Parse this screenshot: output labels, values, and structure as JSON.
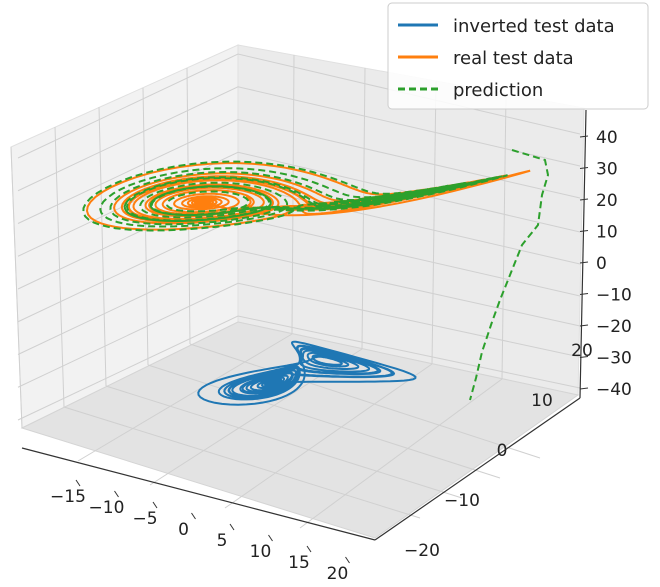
{
  "chart_data": {
    "type": "line",
    "projection": "3d",
    "title": "",
    "xlabel": "",
    "ylabel": "",
    "zlabel": "",
    "grid": true,
    "legend_position": "top-right",
    "x_ticks": [
      "−15",
      "−10",
      "−5",
      "0",
      "5",
      "10",
      "15",
      "20"
    ],
    "y_ticks": [
      "−20",
      "−10",
      "0",
      "10",
      "20"
    ],
    "z_ticks": [
      "−40",
      "−30",
      "−20",
      "−10",
      "0",
      "10",
      "20",
      "30",
      "40"
    ],
    "xlim": [
      -20,
      22
    ],
    "ylim": [
      -25,
      25
    ],
    "zlim": [
      -45,
      45
    ],
    "series": [
      {
        "name": "inverted test data",
        "color": "#1f77b4",
        "linestyle": "solid",
        "description_values": "Lorenz butterfly near z from about -44 to -15; two lobes centered near (x=-9, y=-9) and (x=9, y=9)"
      },
      {
        "name": "real test data",
        "color": "#ff7f0e",
        "linestyle": "solid",
        "description_values": "Lorenz butterfly near z from about 18 to 42; two lobes centered near (x=-9, y=-9) and (x=9, y=9)"
      },
      {
        "name": "prediction",
        "color": "#2ca02c",
        "linestyle": "dashed",
        "description_values": "follows real test data closely, with one strand descending from z ≈ 35 to z ≈ -40 near x ≈ 10, y ≈ 22"
      }
    ]
  }
}
